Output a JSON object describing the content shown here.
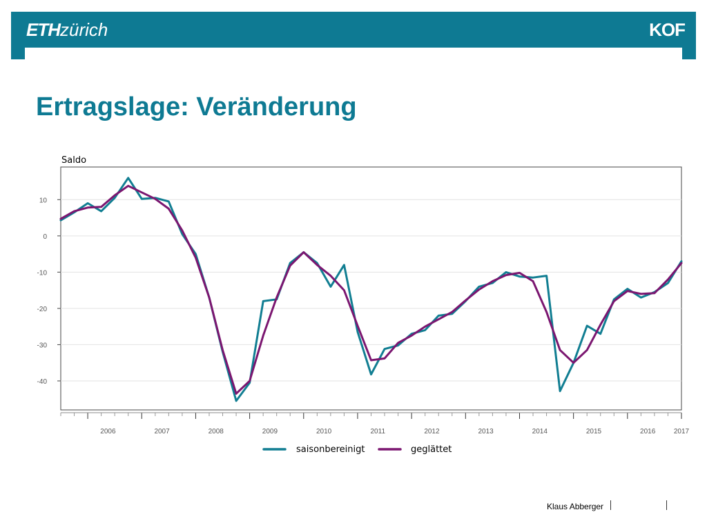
{
  "header": {
    "logo_eth_bold": "ETH",
    "logo_eth_light": "zürich",
    "logo_kof": "KOF"
  },
  "title": "Ertragslage: Veränderung",
  "footer": {
    "author": "Klaus Abberger"
  },
  "colors": {
    "brand": "#0e7a93",
    "seasonal": "#117e92",
    "smoothed": "#7b1670"
  },
  "chart_data": {
    "type": "line",
    "ylabel": "Saldo",
    "ylim": [
      -48,
      19
    ],
    "yticks": [
      10,
      0,
      -10,
      -20,
      -30,
      -40
    ],
    "ytick_labels": [
      "10",
      "0",
      "-10",
      "-20",
      "-30",
      "-40"
    ],
    "xlim": [
      2005.5,
      2017.25
    ],
    "year_labels": [
      "2006",
      "2007",
      "2008",
      "2009",
      "2010",
      "2011",
      "2012",
      "2013",
      "2014",
      "2015",
      "2016",
      "2017"
    ],
    "grid": true,
    "legend_position": "bottom",
    "series": [
      {
        "name": "saisonbereinigt",
        "color": "#117e92",
        "x": [
          2005.5,
          2005.75,
          2006.0,
          2006.25,
          2006.5,
          2006.75,
          2007.0,
          2007.25,
          2007.5,
          2007.75,
          2008.0,
          2008.25,
          2008.5,
          2008.75,
          2009.0,
          2009.25,
          2009.5,
          2009.75,
          2010.0,
          2010.25,
          2010.5,
          2010.75,
          2011.0,
          2011.25,
          2011.5,
          2011.75,
          2012.0,
          2012.25,
          2012.5,
          2012.75,
          2013.0,
          2013.25,
          2013.5,
          2013.75,
          2014.0,
          2014.25,
          2014.5,
          2014.75,
          2015.0,
          2015.25,
          2015.5,
          2015.75,
          2016.0,
          2016.25,
          2016.5,
          2016.75,
          2017.0
        ],
        "values": [
          4.3,
          6.5,
          9.0,
          6.8,
          10.5,
          16.0,
          10.2,
          10.5,
          9.5,
          0.5,
          -5.0,
          -17.0,
          -32.0,
          -45.5,
          -40.5,
          -18.0,
          -17.5,
          -7.5,
          -4.5,
          -7.5,
          -14.0,
          -8.0,
          -26.5,
          -38.2,
          -31.2,
          -30.2,
          -27.0,
          -26.0,
          -22.0,
          -21.5,
          -18.0,
          -14.0,
          -13.0,
          -10.0,
          -11.2,
          -11.5,
          -11.0,
          -42.8,
          -35.0,
          -24.8,
          -27.0,
          -17.5,
          -14.6,
          -17.0,
          -15.5,
          -13.0,
          -7.0
        ]
      },
      {
        "name": "geglättet",
        "color": "#7b1670",
        "x": [
          2005.5,
          2005.75,
          2006.0,
          2006.25,
          2006.5,
          2006.75,
          2007.0,
          2007.25,
          2007.5,
          2007.75,
          2008.0,
          2008.25,
          2008.5,
          2008.75,
          2009.0,
          2009.25,
          2009.5,
          2009.75,
          2010.0,
          2010.25,
          2010.5,
          2010.75,
          2011.0,
          2011.25,
          2011.5,
          2011.75,
          2012.0,
          2012.25,
          2012.5,
          2012.75,
          2013.0,
          2013.25,
          2013.5,
          2013.75,
          2014.0,
          2014.25,
          2014.5,
          2014.75,
          2015.0,
          2015.25,
          2015.5,
          2015.75,
          2016.0,
          2016.25,
          2016.5,
          2016.75,
          2017.0
        ],
        "values": [
          4.7,
          6.8,
          7.8,
          8.0,
          11.2,
          13.8,
          12.0,
          10.2,
          7.5,
          1.5,
          -6.0,
          -17.0,
          -31.5,
          -43.5,
          -40.0,
          -27.5,
          -17.0,
          -8.2,
          -4.5,
          -8.0,
          -11.0,
          -15.0,
          -24.8,
          -34.3,
          -33.8,
          -29.5,
          -27.5,
          -25.0,
          -23.0,
          -21.0,
          -17.8,
          -14.8,
          -12.5,
          -10.8,
          -10.2,
          -12.5,
          -21.0,
          -31.5,
          -35.0,
          -31.5,
          -24.5,
          -18.0,
          -15.2,
          -16.0,
          -15.8,
          -12.0,
          -7.5
        ]
      }
    ]
  }
}
